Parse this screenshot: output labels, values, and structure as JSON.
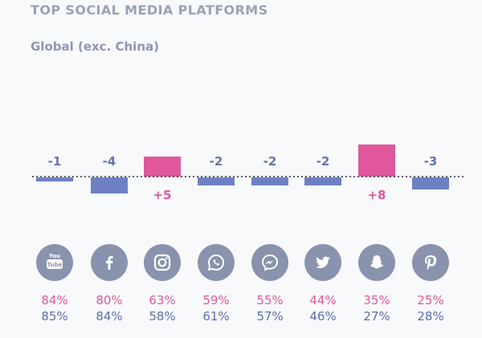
{
  "header": {
    "title": "TOP SOCIAL MEDIA PLATFORMS",
    "subtitle": "Global (exc. China)"
  },
  "colors": {
    "positive": "#e0579c",
    "negative": "#6f80c2",
    "label": "#6574a8",
    "icon_bg": "#8a93ad",
    "share_a": "#e0589c",
    "share_b": "#5c6fad"
  },
  "chart_data": {
    "type": "bar",
    "title": "TOP SOCIAL MEDIA PLATFORMS",
    "subtitle": "Global (exc. China)",
    "categories": [
      "YouTube",
      "Facebook",
      "Instagram",
      "WhatsApp",
      "Messenger",
      "Twitter",
      "Snapchat",
      "Pinterest"
    ],
    "values": [
      -1,
      -4,
      5,
      -2,
      -2,
      -2,
      8,
      -3
    ],
    "value_labels": [
      "-1",
      "-4",
      "+5",
      "-2",
      "-2",
      "-2",
      "+8",
      "-3"
    ],
    "baseline": 0,
    "series": [
      {
        "values": [
          "84%",
          "80%",
          "63%",
          "59%",
          "55%",
          "44%",
          "35%",
          "25%"
        ]
      },
      {
        "values": [
          "85%",
          "84%",
          "58%",
          "61%",
          "57%",
          "46%",
          "27%",
          "28%"
        ]
      }
    ],
    "icons": [
      "youtube-icon",
      "facebook-icon",
      "instagram-icon",
      "whatsapp-icon",
      "messenger-icon",
      "twitter-icon",
      "snapchat-icon",
      "pinterest-icon"
    ],
    "grid": false,
    "legend": "none"
  }
}
